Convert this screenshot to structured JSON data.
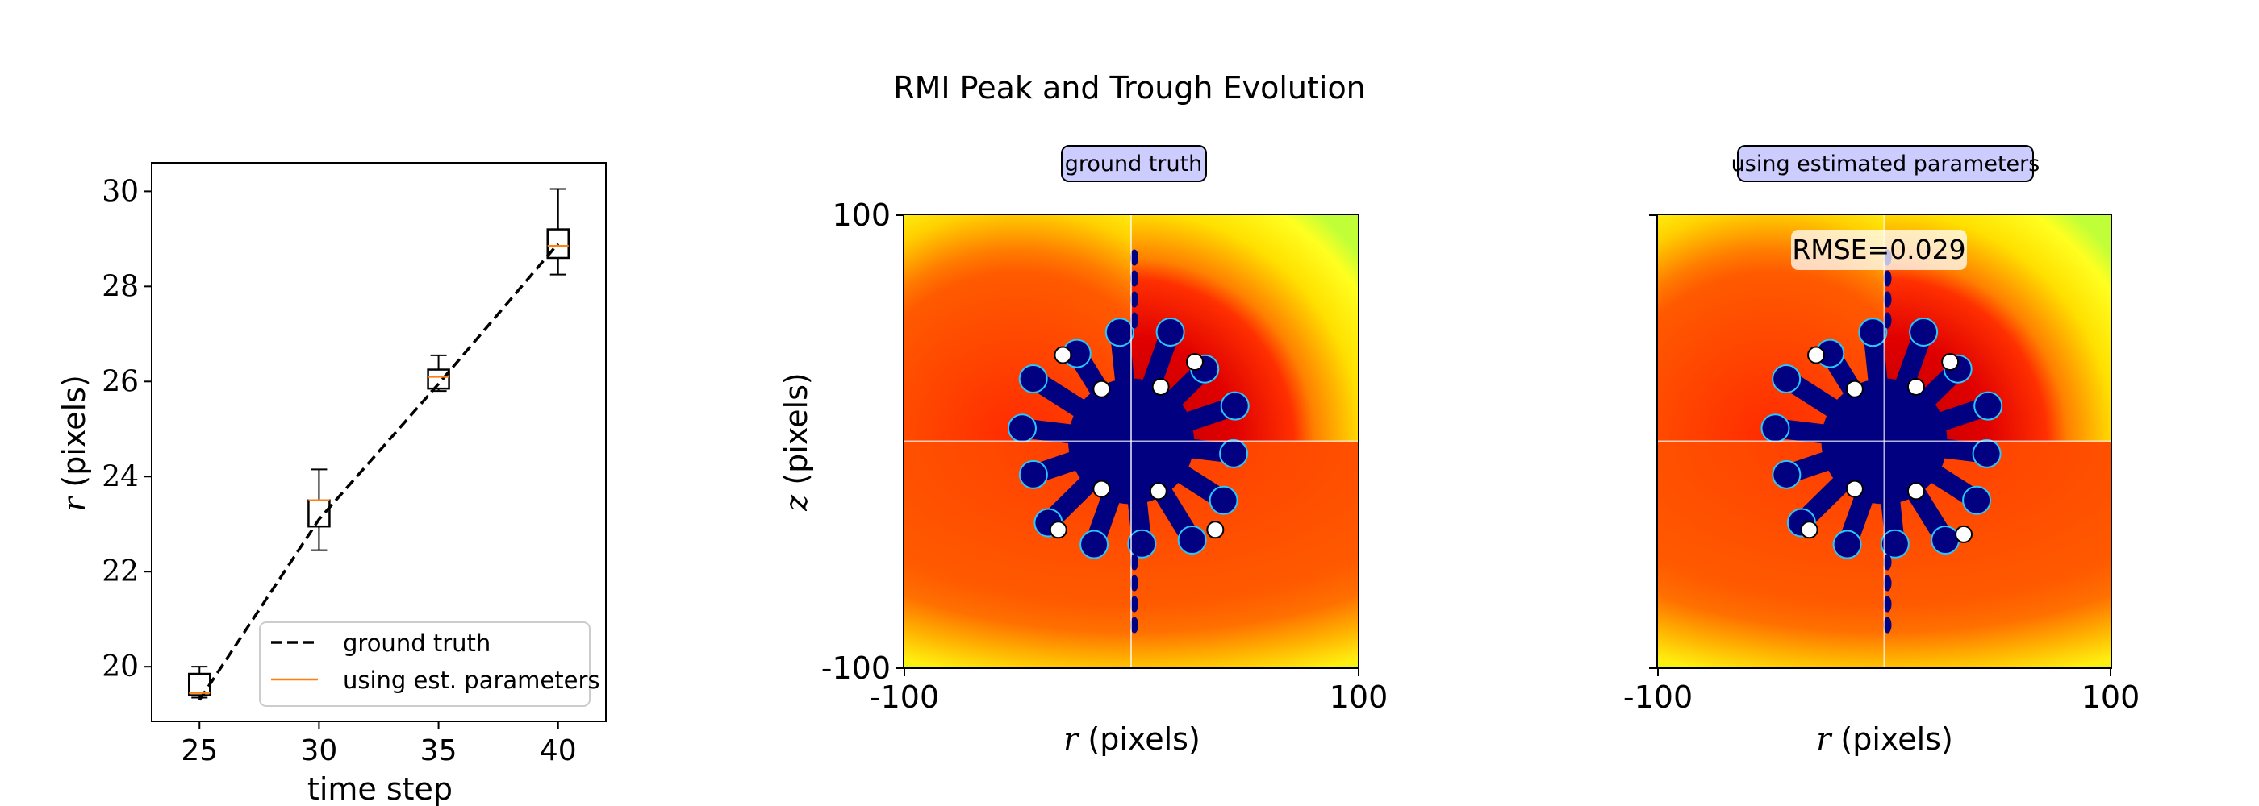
{
  "figure_title": "RMI Peak and Trough Evolution",
  "colors": {
    "ground_truth_line": "#000000",
    "estimate_line": "#ff7f0e",
    "badge_fill": "#ccccff",
    "jet_deep_blue": "#000080",
    "jet_red": "#ff2000",
    "jet_orange": "#ff6000",
    "jet_yellow": "#ffff00",
    "jet_green_yellow": "#b8ff3a"
  },
  "chart_data": [
    {
      "type": "box",
      "xlabel": "time step",
      "ylabel": "r (pixels)",
      "ylabel_symbol": "r",
      "ylabel_unit": "(pixels)",
      "xticks": [
        25,
        30,
        35,
        40
      ],
      "yticks": [
        20,
        22,
        24,
        26,
        28,
        30
      ],
      "xlim": [
        23,
        42
      ],
      "ylim": [
        18.85,
        30.6
      ],
      "boxes": [
        {
          "x": 25,
          "whislo": 19.35,
          "q1": 19.4,
          "med": 19.45,
          "q3": 19.85,
          "whishi": 20.0
        },
        {
          "x": 30,
          "whislo": 22.45,
          "q1": 22.95,
          "med": 23.5,
          "q3": 23.5,
          "whishi": 24.15
        },
        {
          "x": 35,
          "whislo": 25.8,
          "q1": 25.85,
          "med": 26.1,
          "q3": 26.25,
          "whishi": 26.55
        },
        {
          "x": 40,
          "whislo": 28.25,
          "q1": 28.6,
          "med": 28.85,
          "q3": 29.2,
          "whishi": 30.05
        }
      ],
      "ground_truth": {
        "x": [
          25,
          30,
          35,
          40
        ],
        "y": [
          19.3,
          23.1,
          25.95,
          28.9
        ]
      },
      "legend": {
        "location": "lower right",
        "entries": [
          "ground truth",
          "using est. parameters"
        ]
      }
    },
    {
      "type": "heatmap",
      "title": "ground truth",
      "xlabel": "r (pixels)",
      "xlabel_symbol": "r",
      "xlabel_unit": "(pixels)",
      "ylabel": "z (pixels)",
      "ylabel_symbol": "z",
      "ylabel_unit": "(pixels)",
      "xticks": [
        "-100",
        "100"
      ],
      "yticks": [
        "100",
        "-100"
      ],
      "xlim": [
        -100,
        100
      ],
      "ylim": [
        -100,
        100
      ],
      "markers": [
        {
          "r": -30,
          "z": 38
        },
        {
          "r": 28,
          "z": 35
        },
        {
          "r": -13,
          "z": 23
        },
        {
          "r": 13,
          "z": 24
        },
        {
          "r": -13,
          "z": -21
        },
        {
          "r": 12,
          "z": -22
        },
        {
          "r": -32,
          "z": -39
        },
        {
          "r": 37,
          "z": -39
        }
      ]
    },
    {
      "type": "heatmap",
      "title": "using estimated parameters",
      "annotation": "RMSE=0.029",
      "xlabel": "r (pixels)",
      "xlabel_symbol": "r",
      "xlabel_unit": "(pixels)",
      "xticks": [
        "-100",
        "100"
      ],
      "xlim": [
        -100,
        100
      ],
      "ylim": [
        -100,
        100
      ],
      "markers": [
        {
          "r": -30,
          "z": 38
        },
        {
          "r": 29,
          "z": 35
        },
        {
          "r": -13,
          "z": 23
        },
        {
          "r": 14,
          "z": 24
        },
        {
          "r": -13,
          "z": -21
        },
        {
          "r": 14,
          "z": -22
        },
        {
          "r": -33,
          "z": -39
        },
        {
          "r": 35,
          "z": -41
        }
      ]
    }
  ]
}
